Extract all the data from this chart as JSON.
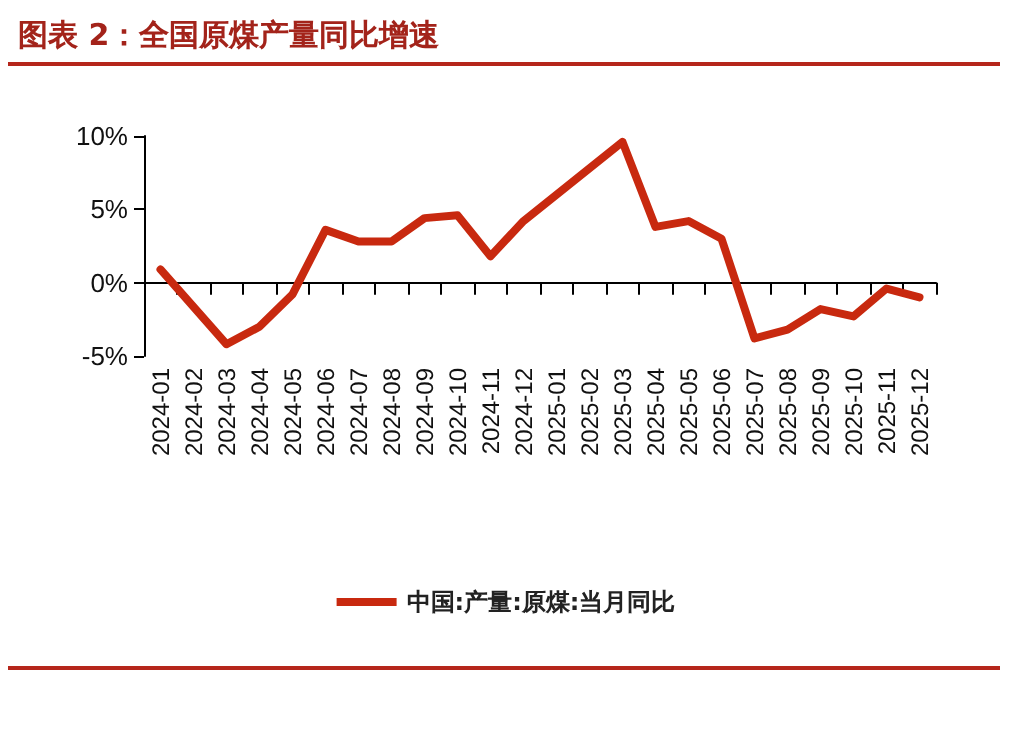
{
  "chart_data": {
    "type": "line",
    "title": "图表 2：全国原煤产量同比增速",
    "categories": [
      "2024-01",
      "2024-02",
      "2024-03",
      "2024-04",
      "2024-05",
      "2024-06",
      "2024-07",
      "2024-08",
      "2024-09",
      "2024-10",
      "2024-11",
      "2024-12",
      "2025-01",
      "2025-02",
      "2025-03",
      "2025-04",
      "2025-05",
      "2025-06",
      "2025-07",
      "2025-08",
      "2025-09",
      "2025-10",
      "2025-11",
      "2025-12"
    ],
    "series": [
      {
        "name": "中国:产量:原煤:当月同比",
        "color": "#c8290f",
        "values": [
          0.9,
          null,
          -4.2,
          -3.0,
          -0.8,
          3.6,
          2.8,
          2.8,
          4.4,
          4.6,
          1.8,
          4.2,
          null,
          null,
          9.6,
          3.8,
          4.2,
          3.0,
          -3.8,
          -3.2,
          -1.8,
          -2.3,
          -0.4,
          -1.0
        ]
      }
    ],
    "ylim": [
      -5,
      10
    ],
    "yticks": [
      {
        "value": -5,
        "label": "-5%"
      },
      {
        "value": 0,
        "label": "0%"
      },
      {
        "value": 5,
        "label": "5%"
      },
      {
        "value": 10,
        "label": "10%"
      }
    ],
    "legend": "bottom",
    "marker": "none",
    "line_style": "solid"
  }
}
